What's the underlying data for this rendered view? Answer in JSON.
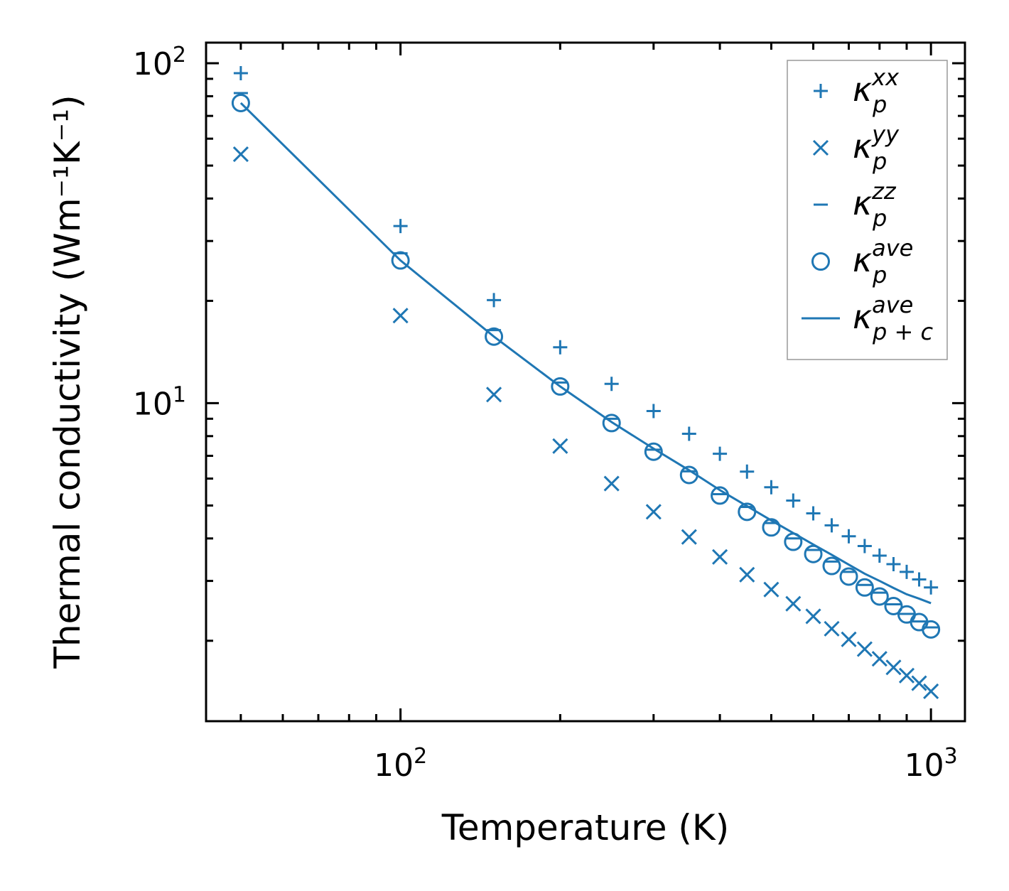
{
  "chart_data": {
    "type": "scatter",
    "xscale": "log",
    "yscale": "log",
    "xlabel": "Temperature (K)",
    "ylabel": "Thermal conductivity (Wm⁻¹K⁻¹)",
    "xlim": [
      43,
      1159
    ],
    "ylim": [
      1.16,
      115
    ],
    "x_major_ticks": [
      {
        "value": 100,
        "base": "10",
        "exp": "2"
      },
      {
        "value": 1000,
        "base": "10",
        "exp": "3"
      }
    ],
    "y_major_ticks": [
      {
        "value": 10,
        "base": "10",
        "exp": "1"
      },
      {
        "value": 100,
        "base": "10",
        "exp": "2"
      }
    ],
    "grid": false,
    "legend_position": "top-right",
    "color": "#1f77b4",
    "x": [
      50,
      100,
      150,
      200,
      250,
      300,
      350,
      400,
      450,
      500,
      550,
      600,
      650,
      700,
      750,
      800,
      850,
      900,
      950,
      1000
    ],
    "series": [
      {
        "name": "kappa_p^xx",
        "marker": "plus",
        "legend": {
          "symbol": "κ",
          "sub": "p",
          "sup": "xx"
        },
        "values": [
          93.5,
          33.2,
          20.1,
          14.6,
          11.4,
          9.48,
          8.13,
          7.1,
          6.29,
          5.66,
          5.17,
          4.74,
          4.37,
          4.06,
          3.8,
          3.56,
          3.36,
          3.19,
          3.03,
          2.87
        ]
      },
      {
        "name": "kappa_p^yy",
        "marker": "x",
        "legend": {
          "symbol": "κ",
          "sub": "p",
          "sup": "yy"
        },
        "values": [
          54,
          18.1,
          10.6,
          7.48,
          5.8,
          4.79,
          4.04,
          3.53,
          3.13,
          2.83,
          2.57,
          2.36,
          2.17,
          2.02,
          1.89,
          1.77,
          1.67,
          1.58,
          1.5,
          1.42
        ]
      },
      {
        "name": "kappa_p^zz",
        "marker": "hline",
        "legend": {
          "symbol": "κ",
          "sub": "p",
          "sup": "zz"
        },
        "values": [
          81.7,
          27.6,
          16.4,
          11.5,
          9.0,
          7.3,
          6.3,
          5.4,
          4.95,
          4.44,
          4.0,
          3.7,
          3.42,
          3.19,
          2.92,
          2.77,
          2.56,
          2.4,
          2.28,
          2.19
        ]
      },
      {
        "name": "kappa_p^ave",
        "marker": "circle",
        "legend": {
          "symbol": "κ",
          "sub": "p",
          "sup": "ave"
        },
        "values": [
          76.4,
          26.3,
          15.7,
          11.2,
          8.74,
          7.2,
          6.15,
          5.35,
          4.79,
          4.31,
          3.91,
          3.6,
          3.32,
          3.09,
          2.87,
          2.7,
          2.53,
          2.39,
          2.27,
          2.16
        ]
      },
      {
        "name": "kappa_p+c^ave",
        "marker": "line",
        "legend": {
          "symbol": "κ",
          "sub": "p + c",
          "sup": "ave"
        },
        "values": [
          76.4,
          26.3,
          15.7,
          11.2,
          8.8,
          7.35,
          6.35,
          5.55,
          4.98,
          4.52,
          4.15,
          3.84,
          3.58,
          3.35,
          3.15,
          3.0,
          2.86,
          2.74,
          2.66,
          2.58
        ]
      }
    ]
  }
}
